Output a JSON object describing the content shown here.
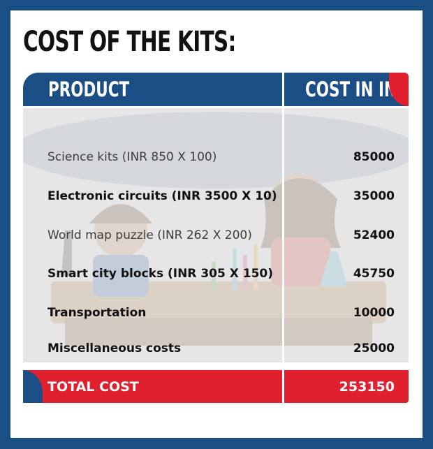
{
  "title": "COST OF THE KITS:",
  "table": {
    "headers": {
      "product": "PRODUCT",
      "cost": "COST IN INR"
    },
    "rows": [
      {
        "product": "Science kits (INR 850 X 100)",
        "cost": "85000"
      },
      {
        "product": "Electronic circuits (INR 3500 X 10)",
        "cost": "35000"
      },
      {
        "product": "World map puzzle (INR 262 X 200)",
        "cost": "52400"
      },
      {
        "product": "Smart city blocks (INR 305 X 150)",
        "cost": "45750"
      },
      {
        "product": "Transportation",
        "cost": "10000"
      },
      {
        "product": "Miscellaneous costs",
        "cost": "25000"
      }
    ],
    "total": {
      "label": "TOTAL COST",
      "value": "253150"
    }
  },
  "colors": {
    "frame_blue": "#1b4e85",
    "accent_red": "#e0202e",
    "table_body": "#e6e6e6"
  }
}
